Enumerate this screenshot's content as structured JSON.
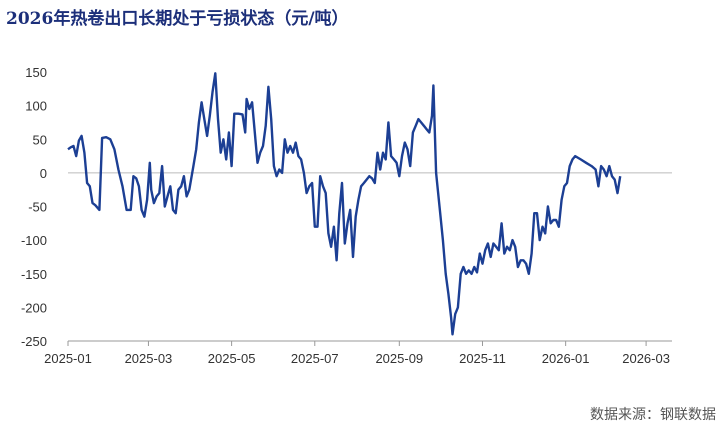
{
  "title": "2026年热卷出口长期处于亏损状态（元/吨）",
  "source": "数据来源：钢联数据",
  "colors": {
    "line": "#1c3f94",
    "axis": "#999999",
    "title": "#1c2f7a"
  },
  "chart_data": {
    "type": "line",
    "title": "2026年热卷出口长期处于亏损状态（元/吨）",
    "xlabel": "",
    "ylabel": "",
    "ylim": [
      -250,
      150
    ],
    "yticks": [
      150,
      100,
      50,
      0,
      -50,
      -100,
      -150,
      -200,
      -250
    ],
    "xlim": [
      "2025-01-01",
      "2026-03-20"
    ],
    "xticks": [
      "2025-01",
      "2025-03",
      "2025-05",
      "2025-07",
      "2025-09",
      "2025-11",
      "2026-01",
      "2026-03"
    ],
    "grid": false,
    "legend": "none",
    "series": [
      {
        "name": "",
        "points": [
          [
            "2025-01-01",
            35
          ],
          [
            "2025-01-03",
            38
          ],
          [
            "2025-01-05",
            40
          ],
          [
            "2025-01-07",
            25
          ],
          [
            "2025-01-09",
            48
          ],
          [
            "2025-01-11",
            55
          ],
          [
            "2025-01-13",
            30
          ],
          [
            "2025-01-15",
            -15
          ],
          [
            "2025-01-17",
            -20
          ],
          [
            "2025-01-19",
            -45
          ],
          [
            "2025-01-21",
            -48
          ],
          [
            "2025-01-24",
            -55
          ],
          [
            "2025-01-26",
            52
          ],
          [
            "2025-01-29",
            53
          ],
          [
            "2025-02-01",
            50
          ],
          [
            "2025-02-04",
            35
          ],
          [
            "2025-02-07",
            5
          ],
          [
            "2025-02-10",
            -20
          ],
          [
            "2025-02-13",
            -55
          ],
          [
            "2025-02-16",
            -55
          ],
          [
            "2025-02-18",
            -5
          ],
          [
            "2025-02-20",
            -8
          ],
          [
            "2025-02-22",
            -20
          ],
          [
            "2025-02-24",
            -55
          ],
          [
            "2025-02-26",
            -65
          ],
          [
            "2025-02-28",
            -40
          ],
          [
            "2025-03-02",
            15
          ],
          [
            "2025-03-03",
            -25
          ],
          [
            "2025-03-05",
            -45
          ],
          [
            "2025-03-07",
            -35
          ],
          [
            "2025-03-09",
            -30
          ],
          [
            "2025-03-11",
            10
          ],
          [
            "2025-03-13",
            -50
          ],
          [
            "2025-03-15",
            -35
          ],
          [
            "2025-03-17",
            -20
          ],
          [
            "2025-03-19",
            -55
          ],
          [
            "2025-03-21",
            -60
          ],
          [
            "2025-03-23",
            -25
          ],
          [
            "2025-03-25",
            -20
          ],
          [
            "2025-03-27",
            -5
          ],
          [
            "2025-03-29",
            -35
          ],
          [
            "2025-03-31",
            -25
          ],
          [
            "2025-04-03",
            10
          ],
          [
            "2025-04-05",
            35
          ],
          [
            "2025-04-07",
            75
          ],
          [
            "2025-04-09",
            105
          ],
          [
            "2025-04-11",
            80
          ],
          [
            "2025-04-13",
            55
          ],
          [
            "2025-04-15",
            85
          ],
          [
            "2025-04-17",
            120
          ],
          [
            "2025-04-19",
            148
          ],
          [
            "2025-04-21",
            80
          ],
          [
            "2025-04-23",
            30
          ],
          [
            "2025-04-25",
            50
          ],
          [
            "2025-04-27",
            20
          ],
          [
            "2025-04-29",
            60
          ],
          [
            "2025-05-01",
            10
          ],
          [
            "2025-05-03",
            88
          ],
          [
            "2025-05-06",
            88
          ],
          [
            "2025-05-09",
            87
          ],
          [
            "2025-05-11",
            60
          ],
          [
            "2025-05-12",
            110
          ],
          [
            "2025-05-14",
            95
          ],
          [
            "2025-05-16",
            105
          ],
          [
            "2025-05-18",
            60
          ],
          [
            "2025-05-20",
            15
          ],
          [
            "2025-05-22",
            30
          ],
          [
            "2025-05-24",
            40
          ],
          [
            "2025-05-26",
            70
          ],
          [
            "2025-05-28",
            128
          ],
          [
            "2025-05-30",
            80
          ],
          [
            "2025-06-01",
            10
          ],
          [
            "2025-06-03",
            -5
          ],
          [
            "2025-06-05",
            5
          ],
          [
            "2025-06-07",
            0
          ],
          [
            "2025-06-09",
            50
          ],
          [
            "2025-06-11",
            30
          ],
          [
            "2025-06-13",
            40
          ],
          [
            "2025-06-15",
            30
          ],
          [
            "2025-06-17",
            45
          ],
          [
            "2025-06-19",
            25
          ],
          [
            "2025-06-21",
            20
          ],
          [
            "2025-06-23",
            0
          ],
          [
            "2025-06-25",
            -30
          ],
          [
            "2025-06-27",
            -20
          ],
          [
            "2025-06-29",
            -15
          ],
          [
            "2025-07-01",
            -80
          ],
          [
            "2025-07-03",
            -80
          ],
          [
            "2025-07-05",
            -5
          ],
          [
            "2025-07-07",
            -20
          ],
          [
            "2025-07-09",
            -30
          ],
          [
            "2025-07-11",
            -90
          ],
          [
            "2025-07-13",
            -110
          ],
          [
            "2025-07-15",
            -80
          ],
          [
            "2025-07-17",
            -130
          ],
          [
            "2025-07-19",
            -60
          ],
          [
            "2025-07-21",
            -15
          ],
          [
            "2025-07-23",
            -105
          ],
          [
            "2025-07-25",
            -75
          ],
          [
            "2025-07-27",
            -55
          ],
          [
            "2025-07-29",
            -125
          ],
          [
            "2025-07-31",
            -65
          ],
          [
            "2025-08-02",
            -40
          ],
          [
            "2025-08-04",
            -20
          ],
          [
            "2025-08-06",
            -15
          ],
          [
            "2025-08-08",
            -10
          ],
          [
            "2025-08-10",
            -5
          ],
          [
            "2025-08-12",
            -8
          ],
          [
            "2025-08-14",
            -15
          ],
          [
            "2025-08-16",
            30
          ],
          [
            "2025-08-18",
            5
          ],
          [
            "2025-08-20",
            30
          ],
          [
            "2025-08-22",
            20
          ],
          [
            "2025-08-24",
            75
          ],
          [
            "2025-08-26",
            25
          ],
          [
            "2025-08-28",
            20
          ],
          [
            "2025-08-30",
            15
          ],
          [
            "2025-09-01",
            -5
          ],
          [
            "2025-09-03",
            25
          ],
          [
            "2025-09-05",
            45
          ],
          [
            "2025-09-07",
            35
          ],
          [
            "2025-09-09",
            10
          ],
          [
            "2025-09-11",
            60
          ],
          [
            "2025-09-13",
            70
          ],
          [
            "2025-09-15",
            80
          ],
          [
            "2025-09-17",
            75
          ],
          [
            "2025-09-19",
            70
          ],
          [
            "2025-09-21",
            65
          ],
          [
            "2025-09-23",
            60
          ],
          [
            "2025-09-25",
            85
          ],
          [
            "2025-09-26",
            130
          ],
          [
            "2025-09-28",
            0
          ],
          [
            "2025-10-01",
            -60
          ],
          [
            "2025-10-03",
            -100
          ],
          [
            "2025-10-05",
            -150
          ],
          [
            "2025-10-07",
            -180
          ],
          [
            "2025-10-09",
            -215
          ],
          [
            "2025-10-10",
            -240
          ],
          [
            "2025-10-12",
            -210
          ],
          [
            "2025-10-14",
            -200
          ],
          [
            "2025-10-16",
            -150
          ],
          [
            "2025-10-18",
            -140
          ],
          [
            "2025-10-20",
            -150
          ],
          [
            "2025-10-22",
            -145
          ],
          [
            "2025-10-24",
            -150
          ],
          [
            "2025-10-26",
            -140
          ],
          [
            "2025-10-28",
            -148
          ],
          [
            "2025-10-30",
            -120
          ],
          [
            "2025-11-01",
            -135
          ],
          [
            "2025-11-03",
            -115
          ],
          [
            "2025-11-05",
            -105
          ],
          [
            "2025-11-07",
            -125
          ],
          [
            "2025-11-09",
            -105
          ],
          [
            "2025-11-11",
            -110
          ],
          [
            "2025-11-13",
            -115
          ],
          [
            "2025-11-15",
            -75
          ],
          [
            "2025-11-17",
            -120
          ],
          [
            "2025-11-19",
            -110
          ],
          [
            "2025-11-21",
            -115
          ],
          [
            "2025-11-23",
            -100
          ],
          [
            "2025-11-25",
            -110
          ],
          [
            "2025-11-27",
            -140
          ],
          [
            "2025-11-29",
            -130
          ],
          [
            "2025-12-01",
            -130
          ],
          [
            "2025-12-03",
            -135
          ],
          [
            "2025-12-05",
            -150
          ],
          [
            "2025-12-07",
            -120
          ],
          [
            "2025-12-09",
            -60
          ],
          [
            "2025-12-11",
            -60
          ],
          [
            "2025-12-13",
            -100
          ],
          [
            "2025-12-15",
            -80
          ],
          [
            "2025-12-17",
            -90
          ],
          [
            "2025-12-19",
            -50
          ],
          [
            "2025-12-21",
            -75
          ],
          [
            "2025-12-23",
            -70
          ],
          [
            "2025-12-25",
            -70
          ],
          [
            "2025-12-27",
            -80
          ],
          [
            "2025-12-29",
            -40
          ],
          [
            "2025-12-31",
            -20
          ],
          [
            "2026-01-02",
            -15
          ],
          [
            "2026-01-04",
            10
          ],
          [
            "2026-01-06",
            20
          ],
          [
            "2026-01-08",
            25
          ],
          [
            "2026-01-12",
            20
          ],
          [
            "2026-01-16",
            15
          ],
          [
            "2026-01-20",
            10
          ],
          [
            "2026-01-23",
            5
          ],
          [
            "2026-01-25",
            -20
          ],
          [
            "2026-01-27",
            10
          ],
          [
            "2026-01-29",
            5
          ],
          [
            "2026-01-31",
            -5
          ],
          [
            "2026-02-02",
            10
          ],
          [
            "2026-02-04",
            -5
          ],
          [
            "2026-02-06",
            -10
          ],
          [
            "2026-02-08",
            -30
          ],
          [
            "2026-02-10",
            -5
          ]
        ]
      }
    ]
  }
}
